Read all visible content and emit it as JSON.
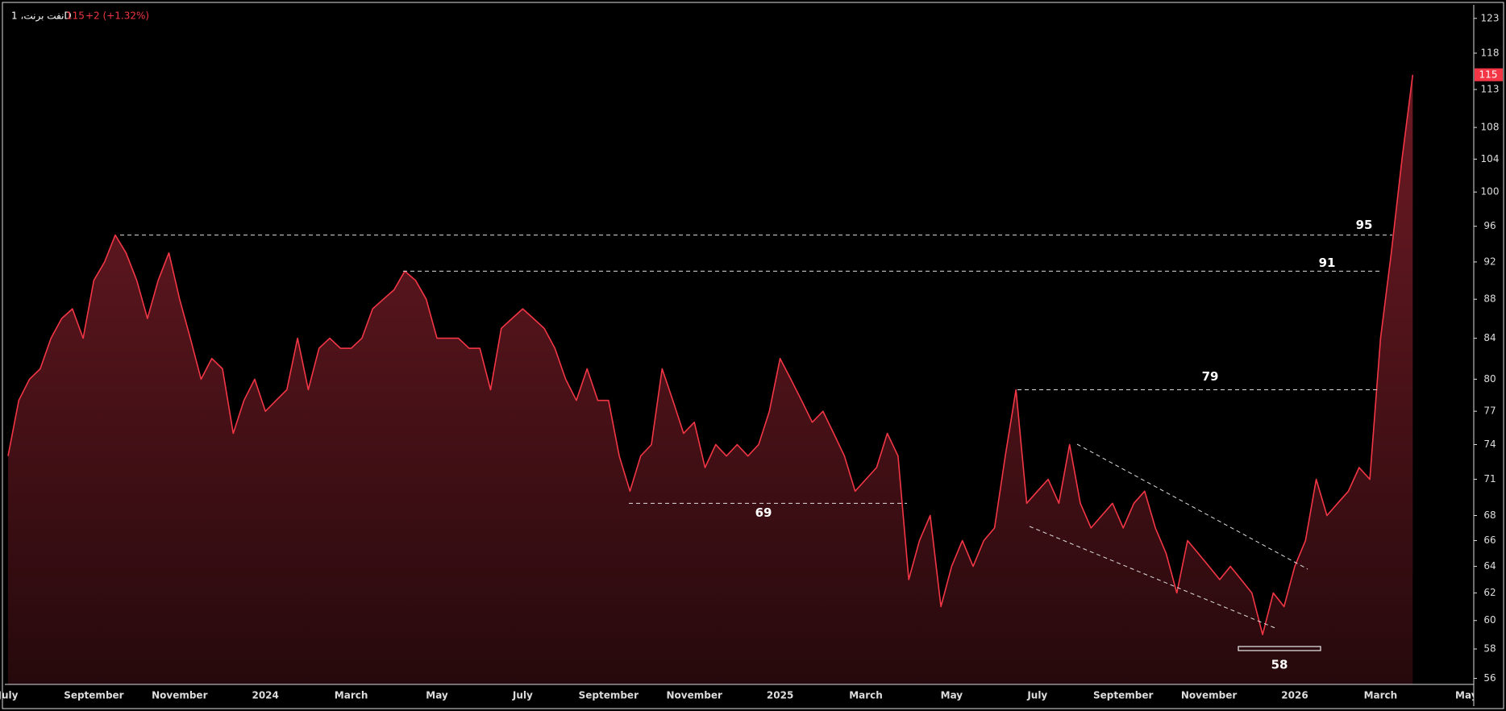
{
  "chart_data": {
    "type": "area",
    "title": "نفت برنت، 1D",
    "price": 115,
    "change": "+2 (+1.32%)",
    "color": "#f23645",
    "log_scale": true,
    "grid": false,
    "categories": [
      "July",
      null,
      null,
      null,
      null,
      null,
      null,
      null,
      "September",
      null,
      null,
      null,
      null,
      null,
      null,
      null,
      "November",
      null,
      null,
      null,
      null,
      null,
      null,
      null,
      "2024",
      null,
      null,
      null,
      null,
      null,
      null,
      null,
      "March",
      null,
      null,
      null,
      null,
      null,
      null,
      null,
      "May",
      null,
      null,
      null,
      null,
      null,
      null,
      null,
      "July",
      null,
      null,
      null,
      null,
      null,
      null,
      null,
      "September",
      null,
      null,
      null,
      null,
      null,
      null,
      null,
      "November",
      null,
      null,
      null,
      null,
      null,
      null,
      null,
      "2025",
      null,
      null,
      null,
      null,
      null,
      null,
      null,
      "March",
      null,
      null,
      null,
      null,
      null,
      null,
      null,
      "May",
      null,
      null,
      null,
      null,
      null,
      null,
      null,
      "July",
      null,
      null,
      null,
      null,
      null,
      null,
      null,
      "September",
      null,
      null,
      null,
      null,
      null,
      null,
      null,
      "November",
      null,
      null,
      null,
      null,
      null,
      null,
      null,
      "2026",
      null,
      null,
      null,
      null,
      null,
      null,
      null,
      "March",
      null,
      null,
      null,
      null,
      null,
      null,
      null,
      "May"
    ],
    "values": [
      73,
      78,
      80,
      81,
      84,
      86,
      87,
      84,
      90,
      92,
      95,
      93,
      90,
      86,
      90,
      93,
      88,
      84,
      80,
      82,
      81,
      75,
      78,
      80,
      77,
      78,
      79,
      84,
      79,
      83,
      84,
      83,
      83,
      84,
      87,
      88,
      89,
      91,
      90,
      88,
      84,
      84,
      84,
      83,
      83,
      79,
      85,
      86,
      87,
      86,
      85,
      83,
      80,
      78,
      81,
      78,
      78,
      73,
      70,
      73,
      74,
      81,
      78,
      75,
      76,
      72,
      74,
      73,
      74,
      73,
      74,
      77,
      82,
      80,
      78,
      76,
      77,
      75,
      73,
      70,
      71,
      72,
      75,
      73,
      63,
      66,
      68,
      61,
      64,
      66,
      64,
      66,
      67,
      73,
      79,
      69,
      70,
      71,
      69,
      74,
      69,
      67,
      68,
      69,
      67,
      69,
      70,
      67,
      65,
      62,
      66,
      65,
      64,
      63,
      64,
      63,
      62,
      59,
      62,
      61,
      64,
      66,
      71,
      68,
      69,
      70,
      72,
      71,
      84,
      93,
      104,
      115,
      null,
      null,
      null,
      null,
      null
    ],
    "ylim": [
      55.6,
      125
    ],
    "yticks": [
      56,
      58,
      60,
      62,
      64,
      66,
      68,
      71,
      74,
      77,
      80,
      84,
      88,
      92,
      96,
      100,
      104,
      108,
      113,
      118,
      123
    ],
    "annotations": [
      {
        "label": "95",
        "value": 95
      },
      {
        "label": "91",
        "value": 91
      },
      {
        "label": "79",
        "value": 79
      },
      {
        "label": "69",
        "value": 69
      },
      {
        "label": "58",
        "value": 58
      }
    ]
  }
}
